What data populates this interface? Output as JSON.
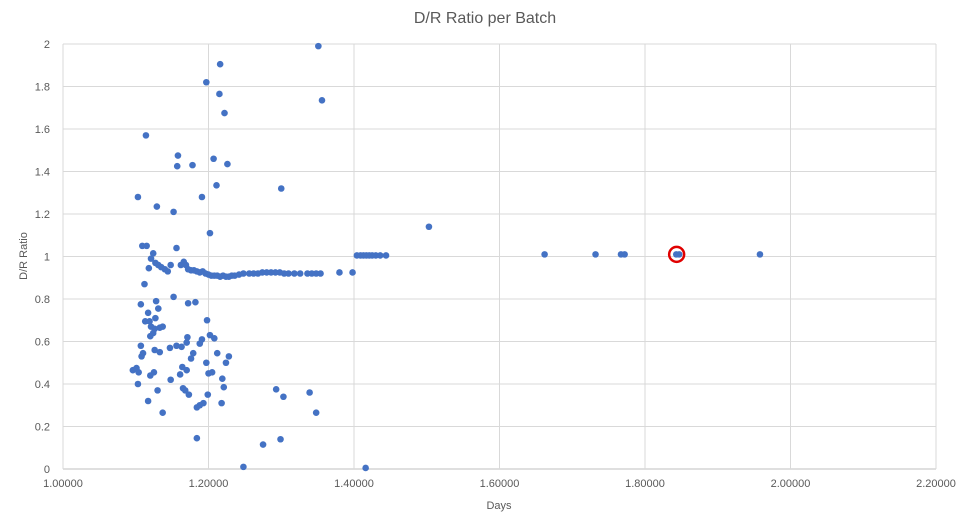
{
  "chart_data": {
    "type": "scatter",
    "title": "D/R Ratio per Batch",
    "xlabel": "Days",
    "ylabel": "D/R Ratio",
    "xlim": [
      1.0,
      2.2
    ],
    "ylim": [
      0,
      2
    ],
    "x_ticks": [
      "1.00000",
      "1.20000",
      "1.40000",
      "1.60000",
      "1.80000",
      "2.00000",
      "2.20000"
    ],
    "y_ticks": [
      "0",
      "0.2",
      "0.4",
      "0.6",
      "0.8",
      "1",
      "1.2",
      "1.4",
      "1.6",
      "1.8",
      "2"
    ],
    "grid": true,
    "legend": "none",
    "colors": {
      "marker": "#4472C4",
      "highlight": "#E00000",
      "grid": "#D9D9D9",
      "text": "#595959"
    },
    "highlight": {
      "x": 1.8435,
      "y": 1.01
    },
    "series": [
      {
        "points": [
          [
            1.351,
            1.99
          ],
          [
            1.216,
            1.905
          ],
          [
            1.197,
            1.82
          ],
          [
            1.215,
            1.765
          ],
          [
            1.356,
            1.735
          ],
          [
            1.222,
            1.675
          ],
          [
            1.114,
            1.57
          ],
          [
            1.158,
            1.475
          ],
          [
            1.207,
            1.46
          ],
          [
            1.157,
            1.425
          ],
          [
            1.178,
            1.43
          ],
          [
            1.226,
            1.435
          ],
          [
            1.211,
            1.335
          ],
          [
            1.3,
            1.32
          ],
          [
            1.103,
            1.28
          ],
          [
            1.191,
            1.28
          ],
          [
            1.129,
            1.235
          ],
          [
            1.152,
            1.21
          ],
          [
            1.503,
            1.14
          ],
          [
            1.202,
            1.11
          ],
          [
            1.109,
            1.05
          ],
          [
            1.115,
            1.05
          ],
          [
            1.156,
            1.04
          ],
          [
            1.124,
            1.015
          ],
          [
            1.121,
            0.99
          ],
          [
            1.127,
            0.97
          ],
          [
            1.118,
            0.945
          ],
          [
            1.131,
            0.96
          ],
          [
            1.135,
            0.95
          ],
          [
            1.14,
            0.94
          ],
          [
            1.144,
            0.93
          ],
          [
            1.148,
            0.96
          ],
          [
            1.162,
            0.96
          ],
          [
            1.166,
            0.975
          ],
          [
            1.169,
            0.96
          ],
          [
            1.172,
            0.94
          ],
          [
            1.176,
            0.935
          ],
          [
            1.18,
            0.935
          ],
          [
            1.184,
            0.93
          ],
          [
            1.188,
            0.925
          ],
          [
            1.192,
            0.93
          ],
          [
            1.196,
            0.92
          ],
          [
            1.2,
            0.915
          ],
          [
            1.204,
            0.91
          ],
          [
            1.208,
            0.91
          ],
          [
            1.212,
            0.91
          ],
          [
            1.216,
            0.905
          ],
          [
            1.22,
            0.91
          ],
          [
            1.224,
            0.905
          ],
          [
            1.228,
            0.905
          ],
          [
            1.232,
            0.91
          ],
          [
            1.236,
            0.91
          ],
          [
            1.242,
            0.915
          ],
          [
            1.248,
            0.92
          ],
          [
            1.256,
            0.92
          ],
          [
            1.262,
            0.92
          ],
          [
            1.268,
            0.92
          ],
          [
            1.274,
            0.925
          ],
          [
            1.28,
            0.925
          ],
          [
            1.286,
            0.925
          ],
          [
            1.292,
            0.925
          ],
          [
            1.298,
            0.925
          ],
          [
            1.304,
            0.92
          ],
          [
            1.31,
            0.92
          ],
          [
            1.318,
            0.92
          ],
          [
            1.326,
            0.92
          ],
          [
            1.336,
            0.92
          ],
          [
            1.342,
            0.92
          ],
          [
            1.348,
            0.92
          ],
          [
            1.354,
            0.92
          ],
          [
            1.38,
            0.925
          ],
          [
            1.398,
            0.925
          ],
          [
            1.404,
            1.005
          ],
          [
            1.409,
            1.005
          ],
          [
            1.413,
            1.005
          ],
          [
            1.417,
            1.005
          ],
          [
            1.421,
            1.005
          ],
          [
            1.425,
            1.005
          ],
          [
            1.43,
            1.005
          ],
          [
            1.436,
            1.005
          ],
          [
            1.444,
            1.005
          ],
          [
            1.662,
            1.01
          ],
          [
            1.732,
            1.01
          ],
          [
            1.767,
            1.01
          ],
          [
            1.772,
            1.01
          ],
          [
            1.843,
            1.01
          ],
          [
            1.847,
            1.01
          ],
          [
            1.958,
            1.01
          ],
          [
            1.112,
            0.87
          ],
          [
            1.152,
            0.81
          ],
          [
            1.107,
            0.775
          ],
          [
            1.128,
            0.79
          ],
          [
            1.182,
            0.785
          ],
          [
            1.172,
            0.78
          ],
          [
            1.131,
            0.755
          ],
          [
            1.117,
            0.735
          ],
          [
            1.113,
            0.695
          ],
          [
            1.119,
            0.695
          ],
          [
            1.127,
            0.71
          ],
          [
            1.198,
            0.7
          ],
          [
            1.121,
            0.67
          ],
          [
            1.126,
            0.66
          ],
          [
            1.133,
            0.665
          ],
          [
            1.137,
            0.67
          ],
          [
            1.124,
            0.64
          ],
          [
            1.12,
            0.625
          ],
          [
            1.202,
            0.63
          ],
          [
            1.171,
            0.62
          ],
          [
            1.191,
            0.61
          ],
          [
            1.208,
            0.615
          ],
          [
            1.107,
            0.58
          ],
          [
            1.156,
            0.58
          ],
          [
            1.163,
            0.575
          ],
          [
            1.17,
            0.595
          ],
          [
            1.188,
            0.59
          ],
          [
            1.147,
            0.57
          ],
          [
            1.126,
            0.56
          ],
          [
            1.133,
            0.55
          ],
          [
            1.179,
            0.545
          ],
          [
            1.212,
            0.545
          ],
          [
            1.228,
            0.53
          ],
          [
            1.108,
            0.53
          ],
          [
            1.11,
            0.545
          ],
          [
            1.176,
            0.52
          ],
          [
            1.096,
            0.465
          ],
          [
            1.101,
            0.475
          ],
          [
            1.104,
            0.455
          ],
          [
            1.197,
            0.5
          ],
          [
            1.224,
            0.5
          ],
          [
            1.164,
            0.48
          ],
          [
            1.17,
            0.465
          ],
          [
            1.125,
            0.455
          ],
          [
            1.12,
            0.44
          ],
          [
            1.161,
            0.445
          ],
          [
            1.2,
            0.45
          ],
          [
            1.205,
            0.455
          ],
          [
            1.148,
            0.42
          ],
          [
            1.219,
            0.425
          ],
          [
            1.103,
            0.4
          ],
          [
            1.165,
            0.38
          ],
          [
            1.168,
            0.37
          ],
          [
            1.13,
            0.37
          ],
          [
            1.221,
            0.385
          ],
          [
            1.293,
            0.375
          ],
          [
            1.339,
            0.36
          ],
          [
            1.173,
            0.35
          ],
          [
            1.199,
            0.35
          ],
          [
            1.303,
            0.34
          ],
          [
            1.193,
            0.31
          ],
          [
            1.188,
            0.3
          ],
          [
            1.184,
            0.29
          ],
          [
            1.218,
            0.31
          ],
          [
            1.117,
            0.32
          ],
          [
            1.137,
            0.265
          ],
          [
            1.348,
            0.265
          ],
          [
            1.184,
            0.145
          ],
          [
            1.299,
            0.14
          ],
          [
            1.275,
            0.115
          ],
          [
            1.248,
            0.01
          ],
          [
            1.416,
            0.005
          ]
        ]
      }
    ]
  }
}
